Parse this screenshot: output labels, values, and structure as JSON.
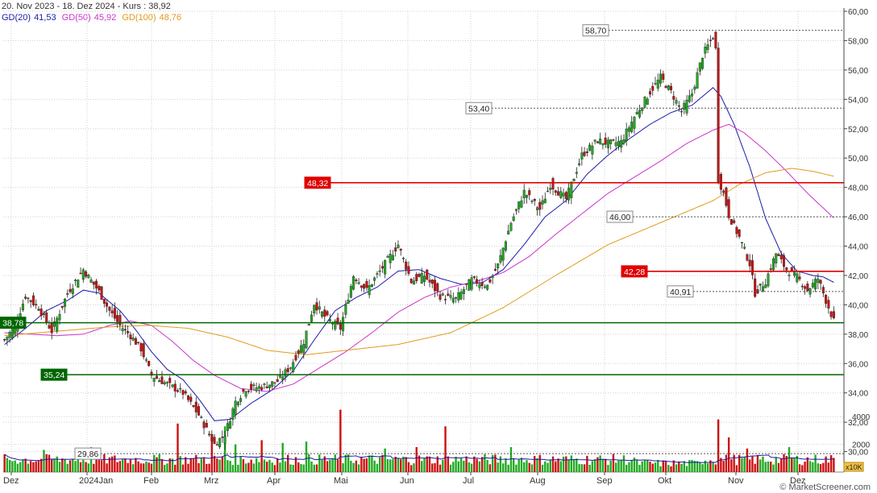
{
  "header": {
    "title": "20. Nov 2023 - 18. Dez 2024 - Kurs : 38,92"
  },
  "indicators": [
    {
      "label": "GD(20)",
      "value": "41,53",
      "color": "#1a1aa8"
    },
    {
      "label": "GD(50)",
      "value": "45,92",
      "color": "#cc33cc"
    },
    {
      "label": "GD(100)",
      "value": "48,76",
      "color": "#e09a1a"
    }
  ],
  "colors": {
    "up": "#22aa22",
    "down": "#cc1111",
    "resistance": "#e00000",
    "support": "#006600",
    "grid": "#d0d0d0",
    "axis": "#444444",
    "volume_ma": "#1a1aa8"
  },
  "watermark": "© MarketScreener.com",
  "volume_unit_badge": "x10K",
  "chart_data": {
    "type": "candlestick",
    "date_range": [
      "2023-11-20",
      "2024-12-18"
    ],
    "last_close": 38.92,
    "price_axis": {
      "min": 29,
      "max": 60,
      "ticks": [
        "60,00",
        "58,00",
        "56,00",
        "54,00",
        "52,00",
        "50,00",
        "48,00",
        "46,00",
        "44,00",
        "42,00",
        "40,00",
        "38,00",
        "36,00",
        "34,00",
        "32,00",
        "30,00"
      ]
    },
    "volume_axis": {
      "max": 5000,
      "ticks": [
        "4000",
        "2000"
      ]
    },
    "x_labels": [
      "Dez",
      "2024Jan",
      "Feb",
      "Mrz",
      "Apr",
      "Mai",
      "Jun",
      "Jul",
      "Aug",
      "Sep",
      "Okt",
      "Nov",
      "Dez"
    ],
    "levels": [
      {
        "value": "58,70",
        "style": "dotted"
      },
      {
        "value": "53,40",
        "style": "dotted"
      },
      {
        "value": "48,32",
        "style": "resistance"
      },
      {
        "value": "46,00",
        "style": "dotted"
      },
      {
        "value": "42,28",
        "style": "resistance"
      },
      {
        "value": "40,91",
        "style": "dotted"
      },
      {
        "value": "38,78",
        "style": "support"
      },
      {
        "value": "35,24",
        "style": "support"
      },
      {
        "value": "29,86",
        "style": "dotted"
      }
    ],
    "close_anchors": [
      [
        0,
        37.6
      ],
      [
        4,
        38.6
      ],
      [
        8,
        40.6
      ],
      [
        13,
        39.8
      ],
      [
        18,
        38.2
      ],
      [
        24,
        40.8
      ],
      [
        30,
        42.4
      ],
      [
        36,
        40.9
      ],
      [
        40,
        39.6
      ],
      [
        44,
        38.6
      ],
      [
        48,
        37.9
      ],
      [
        52,
        37.0
      ],
      [
        56,
        35.2
      ],
      [
        62,
        34.6
      ],
      [
        68,
        34.0
      ],
      [
        74,
        32.5
      ],
      [
        80,
        30.5
      ],
      [
        84,
        31.2
      ],
      [
        88,
        33.4
      ],
      [
        92,
        34.3
      ],
      [
        98,
        34.4
      ],
      [
        104,
        34.8
      ],
      [
        109,
        35.8
      ],
      [
        114,
        37.5
      ],
      [
        118,
        40.1
      ],
      [
        122,
        39.2
      ],
      [
        128,
        38.4
      ],
      [
        133,
        42.0
      ],
      [
        138,
        41.0
      ],
      [
        145,
        42.8
      ],
      [
        150,
        44.1
      ],
      [
        155,
        41.6
      ],
      [
        160,
        42.0
      ],
      [
        166,
        40.6
      ],
      [
        172,
        40.4
      ],
      [
        178,
        41.7
      ],
      [
        184,
        41.3
      ],
      [
        188,
        42.7
      ],
      [
        193,
        45.6
      ],
      [
        198,
        47.7
      ],
      [
        204,
        46.5
      ],
      [
        208,
        48.2
      ],
      [
        214,
        47.2
      ],
      [
        220,
        50.2
      ],
      [
        226,
        51.2
      ],
      [
        230,
        51.0
      ],
      [
        235,
        51.1
      ],
      [
        240,
        52.8
      ],
      [
        246,
        54.5
      ],
      [
        250,
        55.5
      ],
      [
        254,
        54.5
      ],
      [
        258,
        53.2
      ],
      [
        262,
        54.4
      ],
      [
        266,
        57.0
      ],
      [
        270,
        58.3
      ],
      [
        271,
        57.4
      ],
      [
        272,
        48.6
      ],
      [
        274,
        47.6
      ],
      [
        276,
        46.1
      ],
      [
        280,
        44.6
      ],
      [
        284,
        42.8
      ],
      [
        286,
        40.8
      ],
      [
        290,
        41.6
      ],
      [
        294,
        43.5
      ],
      [
        298,
        42.4
      ],
      [
        302,
        41.9
      ],
      [
        306,
        41.0
      ],
      [
        310,
        41.8
      ],
      [
        313,
        40.3
      ],
      [
        316,
        38.9
      ]
    ],
    "series": [
      {
        "name": "GD(20)",
        "anchors": [
          [
            0,
            37.3
          ],
          [
            8,
            38.4
          ],
          [
            16,
            39.6
          ],
          [
            24,
            40.3
          ],
          [
            30,
            41.0
          ],
          [
            36,
            40.8
          ],
          [
            44,
            39.6
          ],
          [
            50,
            38.3
          ],
          [
            56,
            36.8
          ],
          [
            62,
            35.6
          ],
          [
            68,
            34.9
          ],
          [
            74,
            33.6
          ],
          [
            80,
            32.1
          ],
          [
            86,
            32.2
          ],
          [
            94,
            33.3
          ],
          [
            102,
            34.2
          ],
          [
            110,
            35.5
          ],
          [
            118,
            37.6
          ],
          [
            126,
            39.6
          ],
          [
            134,
            40.5
          ],
          [
            142,
            41.2
          ],
          [
            150,
            42.3
          ],
          [
            158,
            42.4
          ],
          [
            166,
            41.8
          ],
          [
            174,
            41.4
          ],
          [
            182,
            41.5
          ],
          [
            190,
            42.4
          ],
          [
            198,
            44.1
          ],
          [
            206,
            46.0
          ],
          [
            214,
            47.1
          ],
          [
            222,
            48.9
          ],
          [
            230,
            50.2
          ],
          [
            238,
            51.3
          ],
          [
            246,
            52.3
          ],
          [
            254,
            53.1
          ],
          [
            262,
            53.6
          ],
          [
            270,
            54.8
          ],
          [
            273,
            54.2
          ],
          [
            278,
            52.3
          ],
          [
            284,
            49.4
          ],
          [
            290,
            45.9
          ],
          [
            296,
            43.5
          ],
          [
            302,
            42.3
          ],
          [
            308,
            42.0
          ],
          [
            312,
            41.9
          ],
          [
            316,
            41.53
          ]
        ],
        "color": "#1a1aa8"
      },
      {
        "name": "GD(50)",
        "anchors": [
          [
            0,
            38.1
          ],
          [
            10,
            38.0
          ],
          [
            20,
            37.9
          ],
          [
            30,
            38.0
          ],
          [
            40,
            38.6
          ],
          [
            48,
            38.9
          ],
          [
            56,
            38.6
          ],
          [
            64,
            37.5
          ],
          [
            72,
            36.2
          ],
          [
            80,
            35.2
          ],
          [
            90,
            34.3
          ],
          [
            100,
            34.1
          ],
          [
            110,
            34.6
          ],
          [
            120,
            35.7
          ],
          [
            130,
            36.8
          ],
          [
            140,
            38.1
          ],
          [
            150,
            39.5
          ],
          [
            160,
            40.5
          ],
          [
            170,
            41.2
          ],
          [
            180,
            41.6
          ],
          [
            190,
            42.2
          ],
          [
            200,
            43.3
          ],
          [
            210,
            44.8
          ],
          [
            220,
            46.2
          ],
          [
            230,
            47.6
          ],
          [
            240,
            48.7
          ],
          [
            250,
            49.8
          ],
          [
            260,
            51.0
          ],
          [
            270,
            51.9
          ],
          [
            276,
            52.3
          ],
          [
            282,
            51.7
          ],
          [
            290,
            50.5
          ],
          [
            298,
            49.1
          ],
          [
            306,
            47.6
          ],
          [
            316,
            45.92
          ]
        ],
        "color": "#cc33cc"
      },
      {
        "name": "GD(100)",
        "anchors": [
          [
            0,
            37.9
          ],
          [
            20,
            38.2
          ],
          [
            40,
            38.5
          ],
          [
            55,
            38.6
          ],
          [
            70,
            38.4
          ],
          [
            85,
            37.8
          ],
          [
            100,
            36.9
          ],
          [
            115,
            36.6
          ],
          [
            130,
            36.9
          ],
          [
            150,
            37.3
          ],
          [
            170,
            38.1
          ],
          [
            190,
            39.8
          ],
          [
            210,
            42.0
          ],
          [
            230,
            44.1
          ],
          [
            250,
            45.6
          ],
          [
            270,
            47.1
          ],
          [
            280,
            48.2
          ],
          [
            290,
            49.0
          ],
          [
            300,
            49.3
          ],
          [
            308,
            49.1
          ],
          [
            316,
            48.76
          ]
        ],
        "color": "#e09a1a"
      }
    ]
  }
}
